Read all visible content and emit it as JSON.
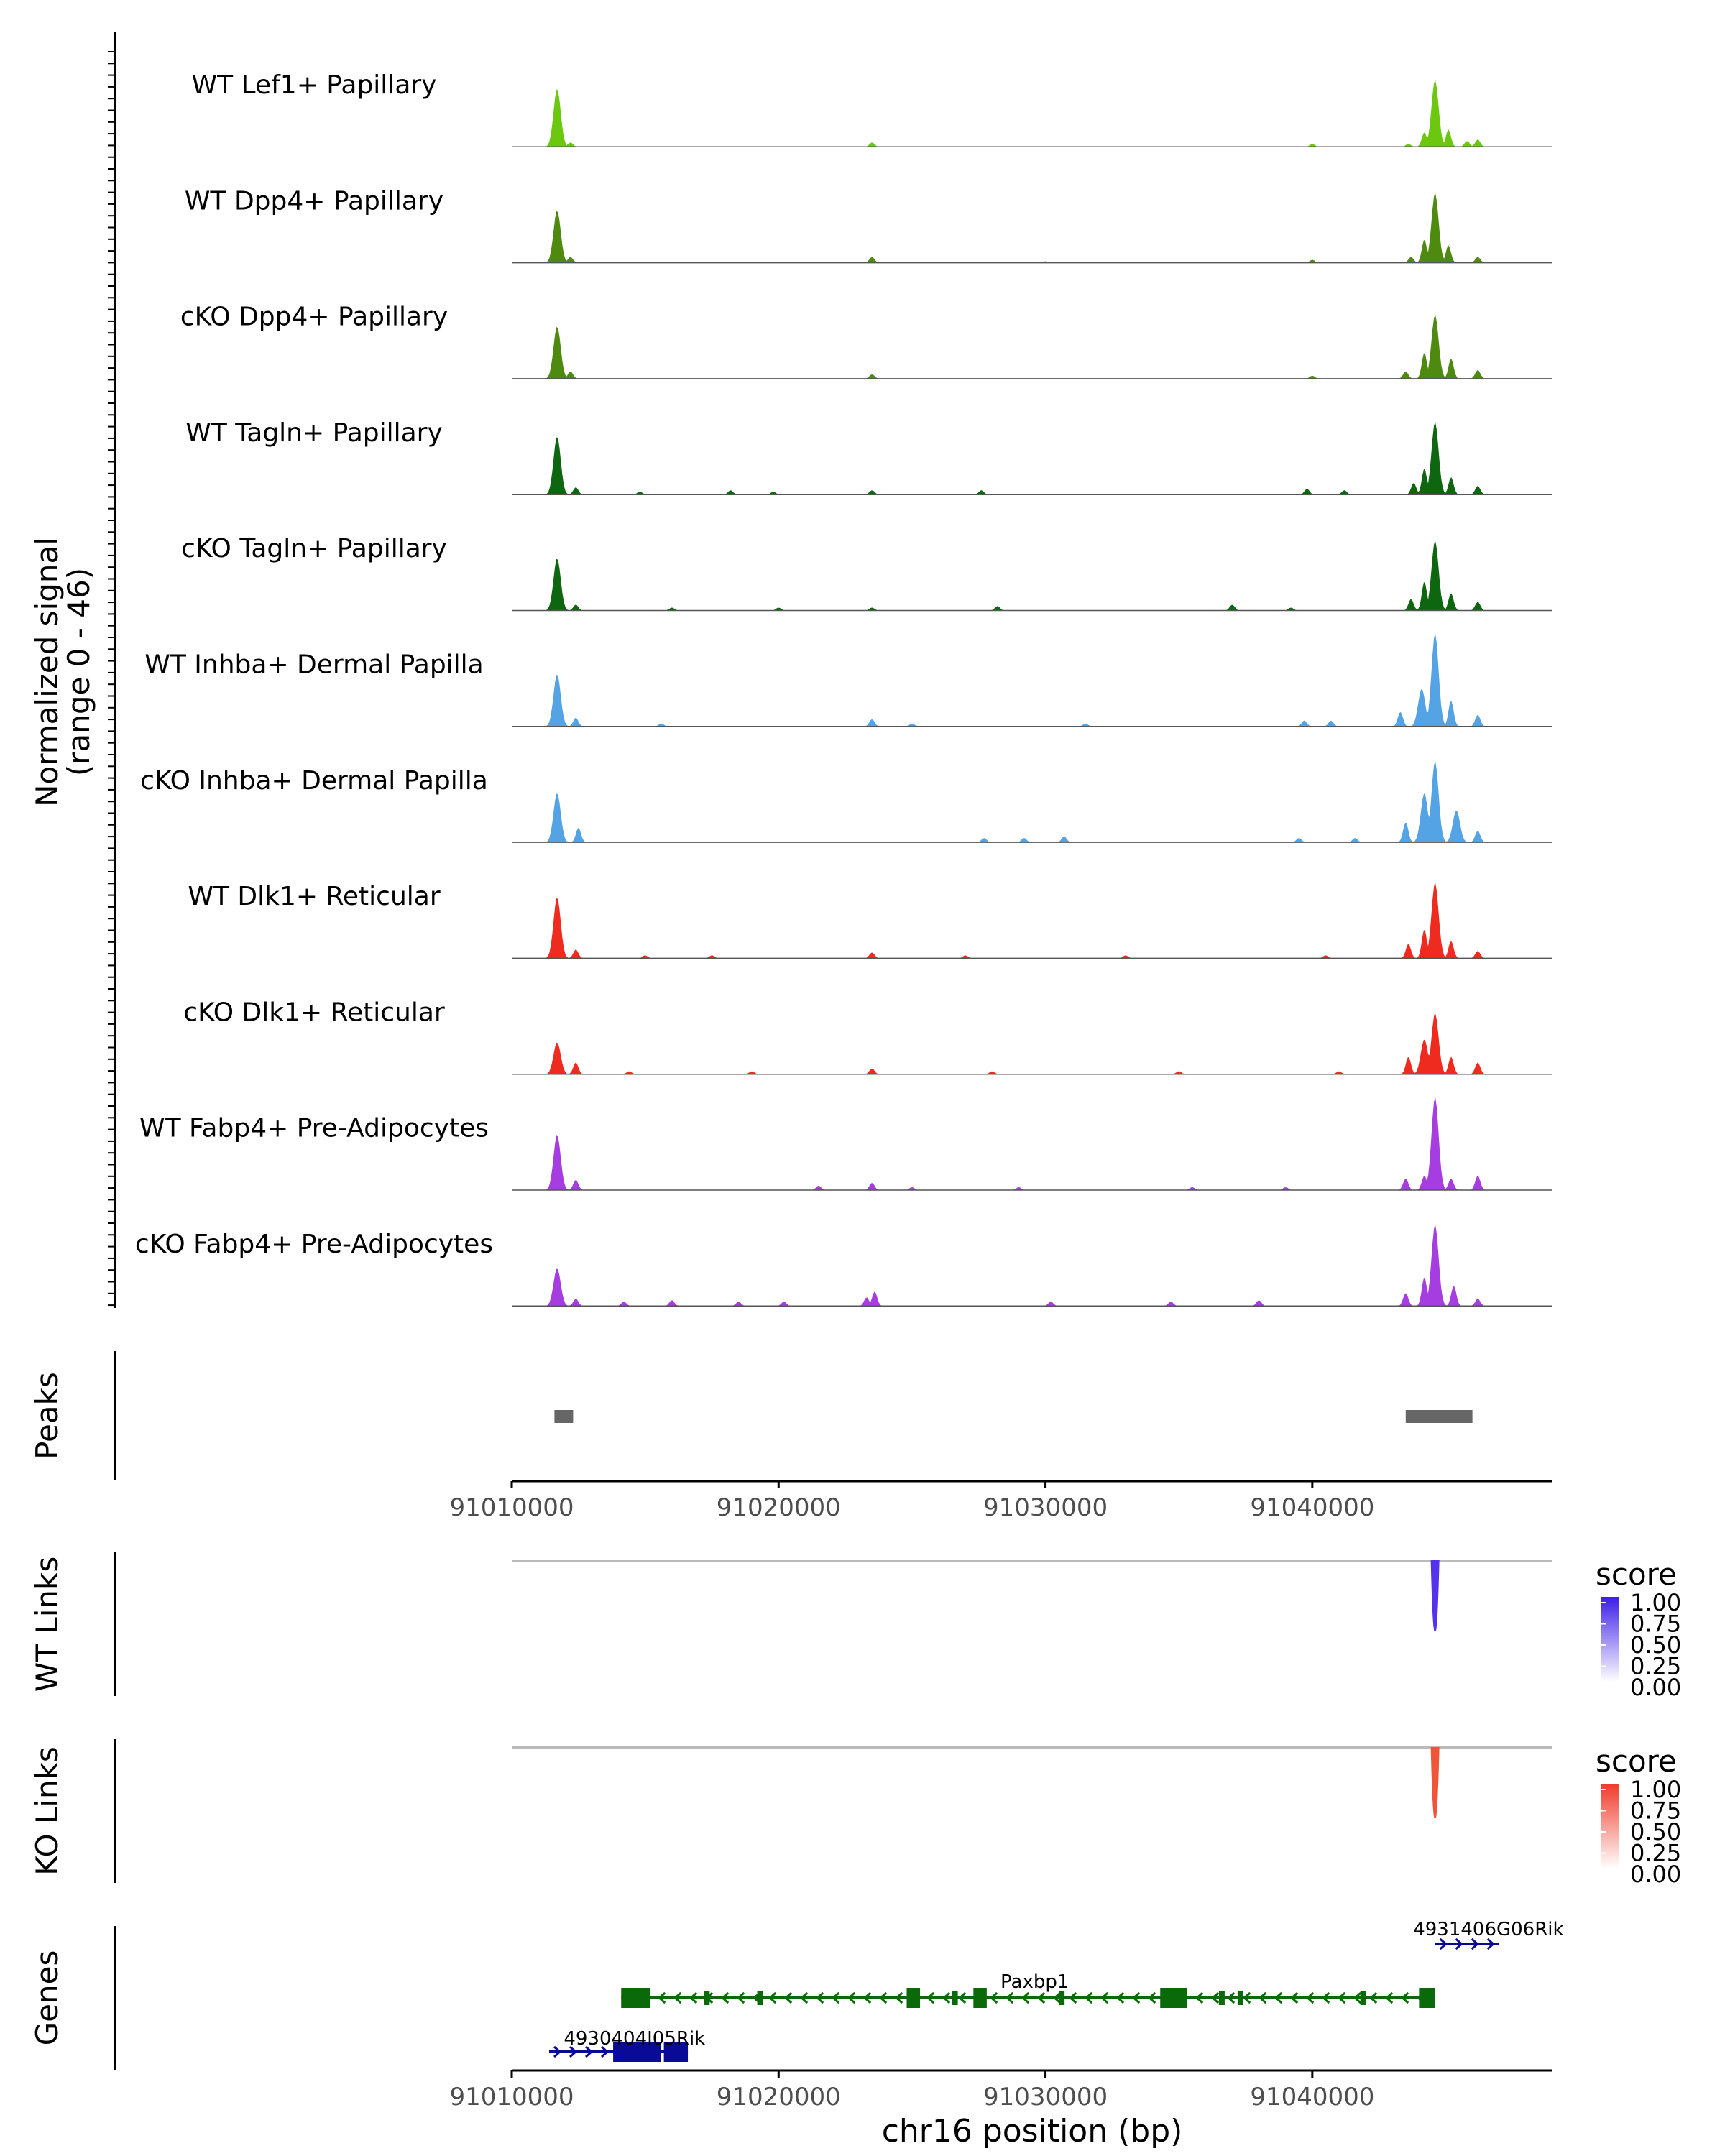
{
  "chart_data": {
    "type": "area",
    "title": "",
    "region": "chr16:91010000-91049000",
    "xlabel": "chr16 position (bp)",
    "xlim": [
      91010000,
      91049000
    ],
    "x_ticks": [
      "91010000",
      "91020000",
      "91030000",
      "91040000"
    ],
    "x_tick_values": [
      91010000,
      91020000,
      91030000,
      91040000
    ],
    "coverage": {
      "ylabel_line1": "Normalized signal",
      "ylabel_line2": "(range 0 - 46)",
      "ylim": [
        0,
        46
      ],
      "series": [
        {
          "name": "WT Lef1+ Papillary",
          "color": "#6cc70f",
          "peaks": [
            [
              91011700,
              40
            ],
            [
              91012200,
              3
            ],
            [
              91023500,
              3
            ],
            [
              91040000,
              2
            ],
            [
              91043600,
              2
            ],
            [
              91044200,
              10
            ],
            [
              91044600,
              46
            ],
            [
              91045100,
              12
            ],
            [
              91045800,
              4
            ],
            [
              91046200,
              5
            ]
          ]
        },
        {
          "name": "WT Dpp4+ Papillary",
          "color": "#4d8a0f",
          "peaks": [
            [
              91011700,
              36
            ],
            [
              91012200,
              4
            ],
            [
              91023500,
              4
            ],
            [
              91030000,
              1
            ],
            [
              91040000,
              2
            ],
            [
              91043700,
              4
            ],
            [
              91044200,
              16
            ],
            [
              91044600,
              48
            ],
            [
              91045100,
              12
            ],
            [
              91046200,
              4
            ]
          ]
        },
        {
          "name": "cKO Dpp4+ Papillary",
          "color": "#4d8a0f",
          "peaks": [
            [
              91011700,
              36
            ],
            [
              91012200,
              5
            ],
            [
              91023500,
              3
            ],
            [
              91040000,
              2
            ],
            [
              91043500,
              5
            ],
            [
              91044200,
              18
            ],
            [
              91044600,
              44
            ],
            [
              91045200,
              14
            ],
            [
              91046200,
              6
            ]
          ]
        },
        {
          "name": "WT Tagln+ Papillary",
          "color": "#0f6610",
          "peaks": [
            [
              91011700,
              40
            ],
            [
              91012400,
              5
            ],
            [
              91014800,
              2
            ],
            [
              91018200,
              3
            ],
            [
              91019800,
              2
            ],
            [
              91023500,
              3
            ],
            [
              91027600,
              3
            ],
            [
              91039800,
              4
            ],
            [
              91041200,
              3
            ],
            [
              91043800,
              8
            ],
            [
              91044200,
              18
            ],
            [
              91044600,
              50
            ],
            [
              91045200,
              12
            ],
            [
              91046200,
              6
            ]
          ]
        },
        {
          "name": "cKO Tagln+ Papillary",
          "color": "#0f6610",
          "peaks": [
            [
              91011700,
              36
            ],
            [
              91012400,
              4
            ],
            [
              91016000,
              2
            ],
            [
              91020000,
              2
            ],
            [
              91023500,
              2
            ],
            [
              91028200,
              3
            ],
            [
              91037000,
              4
            ],
            [
              91039200,
              2
            ],
            [
              91043700,
              8
            ],
            [
              91044200,
              20
            ],
            [
              91044600,
              48
            ],
            [
              91045200,
              12
            ],
            [
              91046200,
              6
            ]
          ]
        },
        {
          "name": "WT Inhba+ Dermal Papilla",
          "color": "#54a3e5",
          "peaks": [
            [
              91011700,
              36
            ],
            [
              91012400,
              6
            ],
            [
              91015600,
              2
            ],
            [
              91023500,
              5
            ],
            [
              91025000,
              2
            ],
            [
              91031500,
              2
            ],
            [
              91039700,
              4
            ],
            [
              91040700,
              4
            ],
            [
              91043300,
              10
            ],
            [
              91044100,
              26
            ],
            [
              91044600,
              64
            ],
            [
              91045200,
              18
            ],
            [
              91046200,
              8
            ]
          ]
        },
        {
          "name": "cKO Inhba+ Dermal Papilla",
          "color": "#54a3e5",
          "peaks": [
            [
              91011700,
              34
            ],
            [
              91012500,
              10
            ],
            [
              91027700,
              3
            ],
            [
              91029200,
              3
            ],
            [
              91030700,
              4
            ],
            [
              91039500,
              3
            ],
            [
              91041600,
              3
            ],
            [
              91043500,
              14
            ],
            [
              91044200,
              34
            ],
            [
              91044600,
              56
            ],
            [
              91045400,
              22
            ],
            [
              91046200,
              8
            ]
          ]
        },
        {
          "name": "WT Dlk1+ Reticular",
          "color": "#ef2a1f",
          "peaks": [
            [
              91011700,
              42
            ],
            [
              91012400,
              6
            ],
            [
              91015000,
              2
            ],
            [
              91017500,
              2
            ],
            [
              91023500,
              4
            ],
            [
              91027000,
              2
            ],
            [
              91033000,
              2
            ],
            [
              91040500,
              2
            ],
            [
              91043600,
              10
            ],
            [
              91044200,
              20
            ],
            [
              91044600,
              52
            ],
            [
              91045200,
              12
            ],
            [
              91046200,
              5
            ]
          ]
        },
        {
          "name": "cKO Dlk1+ Reticular",
          "color": "#ef2a1f",
          "peaks": [
            [
              91011700,
              22
            ],
            [
              91012400,
              8
            ],
            [
              91014400,
              2
            ],
            [
              91019000,
              2
            ],
            [
              91023500,
              4
            ],
            [
              91028000,
              2
            ],
            [
              91035000,
              2
            ],
            [
              91041000,
              2
            ],
            [
              91043600,
              12
            ],
            [
              91044200,
              24
            ],
            [
              91044600,
              42
            ],
            [
              91045200,
              12
            ],
            [
              91046200,
              8
            ]
          ]
        },
        {
          "name": "WT Fabp4+ Pre-Adipocytes",
          "color": "#a63de0",
          "peaks": [
            [
              91011700,
              38
            ],
            [
              91012400,
              7
            ],
            [
              91021500,
              3
            ],
            [
              91023500,
              5
            ],
            [
              91025000,
              2
            ],
            [
              91029000,
              2
            ],
            [
              91035500,
              2
            ],
            [
              91039000,
              2
            ],
            [
              91043500,
              8
            ],
            [
              91044200,
              10
            ],
            [
              91044600,
              64
            ],
            [
              91045200,
              8
            ],
            [
              91046200,
              10
            ]
          ]
        },
        {
          "name": "cKO Fabp4+ Pre-Adipocytes",
          "color": "#a63de0",
          "peaks": [
            [
              91011700,
              26
            ],
            [
              91012400,
              5
            ],
            [
              91014200,
              3
            ],
            [
              91016000,
              4
            ],
            [
              91018500,
              3
            ],
            [
              91020200,
              3
            ],
            [
              91023300,
              6
            ],
            [
              91023600,
              10
            ],
            [
              91030200,
              3
            ],
            [
              91034700,
              3
            ],
            [
              91038000,
              4
            ],
            [
              91043500,
              9
            ],
            [
              91044200,
              20
            ],
            [
              91044600,
              56
            ],
            [
              91045300,
              14
            ],
            [
              91046200,
              5
            ]
          ]
        }
      ]
    },
    "peaks_track": {
      "ylabel": "Peaks",
      "color": "#666666",
      "intervals": [
        [
          91011600,
          91012300
        ],
        [
          91043500,
          91046000
        ]
      ]
    },
    "links_tracks": [
      {
        "ylabel": "WT Links",
        "color": "#5533ee",
        "baseline_color": "#bbbbbb",
        "link_position": 91044600,
        "score": 1.0,
        "legend_title": "score",
        "legend_ticks": [
          "1.00",
          "0.75",
          "0.50",
          "0.25",
          "0.00"
        ],
        "gradient_color": "#3c1ee8"
      },
      {
        "ylabel": "KO Links",
        "color": "#f0553a",
        "baseline_color": "#bbbbbb",
        "link_position": 91044600,
        "score": 1.0,
        "legend_title": "score",
        "legend_ticks": [
          "1.00",
          "0.75",
          "0.50",
          "0.25",
          "0.00"
        ],
        "gradient_color": "#f03a2a"
      }
    ],
    "genes_track": {
      "ylabel": "Genes",
      "genes": [
        {
          "name": "4931406G06Rik",
          "start": 91044600,
          "end": 91047000,
          "strand": "+",
          "color": "#0a0a99",
          "row": 0,
          "exons": [],
          "label_x": 91046600
        },
        {
          "name": "Paxbp1",
          "start": 91014100,
          "end": 91044600,
          "strand": "-",
          "color": "#0a6a0a",
          "row": 1,
          "exons": [
            [
              91014100,
              91015200
            ],
            [
              91017200,
              91017300
            ],
            [
              91019200,
              91019300
            ],
            [
              91024800,
              91025300
            ],
            [
              91026500,
              91026600
            ],
            [
              91027300,
              91027800
            ],
            [
              91030500,
              91030700
            ],
            [
              91034300,
              91035300
            ],
            [
              91036500,
              91036600
            ],
            [
              91037200,
              91037400
            ],
            [
              91041800,
              91041900
            ],
            [
              91044000,
              91044600
            ]
          ],
          "label_x": 91029600
        },
        {
          "name": "4930404I05Rik",
          "start": 91011400,
          "end": 91016600,
          "strand": "+",
          "color": "#0a0a99",
          "row": 2,
          "exons": [
            [
              91013800,
              91015600
            ],
            [
              91015700,
              91016600
            ]
          ],
          "label_x": 91014600
        }
      ]
    }
  }
}
